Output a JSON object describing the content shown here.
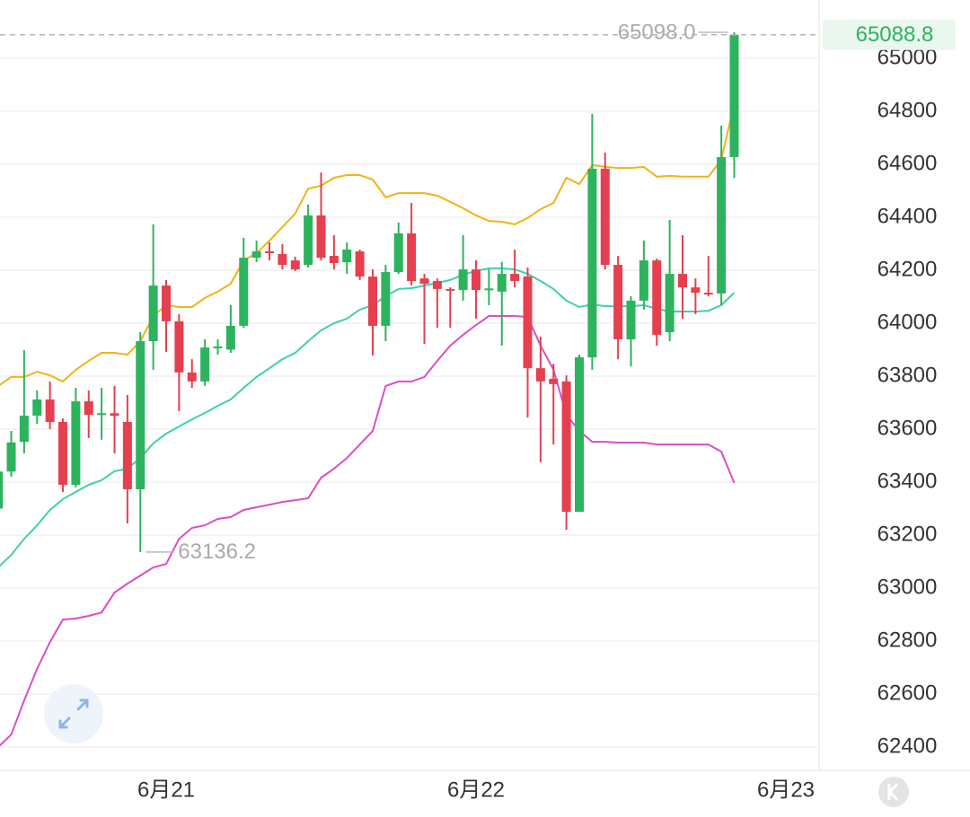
{
  "chart_data": {
    "type": "candlestick",
    "categories": [
      null,
      null,
      null,
      null,
      null,
      null,
      null,
      null,
      null,
      null,
      null,
      null,
      null,
      "6月21",
      null,
      null,
      null,
      null,
      null,
      null,
      null,
      null,
      null,
      null,
      null,
      null,
      null,
      null,
      null,
      null,
      null,
      null,
      null,
      null,
      null,
      null,
      null,
      "6月22",
      null,
      null,
      null,
      null,
      null,
      null,
      null,
      null,
      null,
      null,
      null,
      null,
      null,
      null,
      null,
      null,
      null,
      null,
      null,
      null,
      null,
      null,
      null,
      "6月23"
    ],
    "open": [
      63300,
      63440,
      63552,
      63651,
      63712,
      63627,
      63390,
      63705,
      63654,
      63660,
      63627,
      63373,
      63932,
      64142,
      64007,
      63814,
      63780,
      63908,
      63900,
      63990,
      64247,
      64271,
      64261,
      64237,
      64220,
      64407,
      64254,
      64230,
      64271,
      64176,
      63990,
      64193,
      64339,
      64169,
      64159,
      64129,
      64125,
      64203,
      64125,
      64119,
      64186,
      64176,
      63830,
      63790,
      63780,
      63288,
      63871,
      64583,
      64220,
      63939,
      64085,
      64237,
      63966,
      64186,
      64135,
      64115,
      64112,
      64627,
      null,
      null,
      null,
      null
    ],
    "high": [
      63480,
      63593,
      63898,
      63746,
      63780,
      63640,
      63756,
      63746,
      63756,
      63763,
      63729,
      63966,
      64373,
      64163,
      64034,
      63864,
      63939,
      63939,
      64068,
      64322,
      64312,
      64305,
      64298,
      64251,
      64448,
      64569,
      64332,
      64305,
      64278,
      64203,
      64220,
      64380,
      64454,
      64186,
      64169,
      64135,
      64332,
      64237,
      64203,
      64231,
      64278,
      64210,
      63949,
      63847,
      63803,
      63881,
      64790,
      64644,
      64254,
      64102,
      64312,
      64244,
      64390,
      64332,
      64169,
      64254,
      64746,
      65098,
      null,
      null,
      null,
      null
    ],
    "low": [
      63280,
      63420,
      63508,
      63620,
      63600,
      63363,
      63380,
      63566,
      63560,
      63508,
      63244,
      63136.2,
      63824,
      63892,
      63668,
      63756,
      63763,
      63881,
      63888,
      63983,
      64231,
      64237,
      64203,
      64197,
      64210,
      64237,
      64203,
      64186,
      64163,
      63878,
      63932,
      64186,
      64142,
      63922,
      63983,
      63983,
      64085,
      64017,
      64068,
      63915,
      64135,
      63644,
      63475,
      63542,
      63220,
      63288,
      63824,
      64203,
      63864,
      63837,
      64051,
      63915,
      63932,
      64017,
      64034,
      64102,
      64068,
      64549,
      null,
      null,
      null,
      null
    ],
    "close": [
      63440,
      63550,
      63651,
      63712,
      63627,
      63390,
      63705,
      63654,
      63660,
      63650,
      63373,
      63932,
      64142,
      64007,
      63814,
      63780,
      63908,
      63912,
      63990,
      64247,
      64271,
      64268,
      64220,
      64203,
      64407,
      64247,
      64227,
      64278,
      64176,
      63990,
      64193,
      64339,
      64159,
      64149,
      64129,
      64125,
      64203,
      64125,
      64131,
      64186,
      64159,
      63830,
      63780,
      63770,
      63288,
      63871,
      64583,
      64220,
      63939,
      64085,
      64237,
      63956,
      64186,
      64135,
      64115,
      64112,
      64627,
      65088.8,
      null,
      null,
      null,
      null
    ],
    "up_color": "#2db35d",
    "down_color": "#e5404f",
    "lines": [
      {
        "color": "#f2b315",
        "values": [
          63763,
          63797,
          63797,
          63817,
          63803,
          63780,
          63824,
          63858,
          63888,
          63888,
          63881,
          63932,
          64027,
          64068,
          64061,
          64061,
          64095,
          64119,
          64149,
          64237,
          64264,
          64312,
          64363,
          64414,
          64508,
          64519,
          64549,
          64559,
          64559,
          64542,
          64475,
          64491,
          64491,
          64491,
          64481,
          64458,
          64434,
          64407,
          64386,
          64383,
          64373,
          64397,
          64430,
          64454,
          64549,
          64525,
          64597,
          64590,
          64586,
          64586,
          64590,
          64553,
          64556,
          64553,
          64553,
          64553,
          64617,
          64830,
          null,
          null,
          null,
          null
        ]
      },
      {
        "color": "#3ecfb0",
        "values": [
          63078,
          63125,
          63186,
          63237,
          63295,
          63336,
          63363,
          63390,
          63407,
          63441,
          63451,
          63491,
          63546,
          63583,
          63610,
          63637,
          63661,
          63688,
          63712,
          63756,
          63797,
          63830,
          63864,
          63888,
          63932,
          63973,
          64000,
          64017,
          64051,
          64068,
          64102,
          64129,
          64132,
          64142,
          64152,
          64163,
          64183,
          64197,
          64207,
          64207,
          64203,
          64186,
          64159,
          64129,
          64085,
          64061,
          64071,
          64064,
          64064,
          64064,
          64068,
          64054,
          64044,
          64044,
          64044,
          64047,
          64068,
          64115,
          null,
          null,
          null,
          null
        ]
      },
      {
        "color": "#d94fc4",
        "values": [
          62400,
          62447,
          62576,
          62695,
          62796,
          62881,
          62885,
          62895,
          62908,
          62983,
          63017,
          63047,
          63078,
          63091,
          63186,
          63227,
          63237,
          63261,
          63268,
          63295,
          63305,
          63315,
          63325,
          63332,
          63339,
          63417,
          63451,
          63491,
          63542,
          63593,
          63763,
          63780,
          63780,
          63797,
          63858,
          63915,
          63956,
          63993,
          64027,
          64027,
          64027,
          64024,
          63915,
          63824,
          63654,
          63593,
          63552,
          63552,
          63549,
          63549,
          63549,
          63542,
          63542,
          63542,
          63542,
          63542,
          63515,
          63397,
          null,
          null,
          null,
          null
        ]
      }
    ],
    "high_label": "65098.0",
    "low_label": "63136.2",
    "ylim": [
      62312,
      65220
    ],
    "yticks": [
      62400,
      62600,
      62800,
      63000,
      63200,
      63400,
      63600,
      63800,
      64000,
      64200,
      64400,
      64600,
      64800,
      65000
    ],
    "grid": true
  }
}
